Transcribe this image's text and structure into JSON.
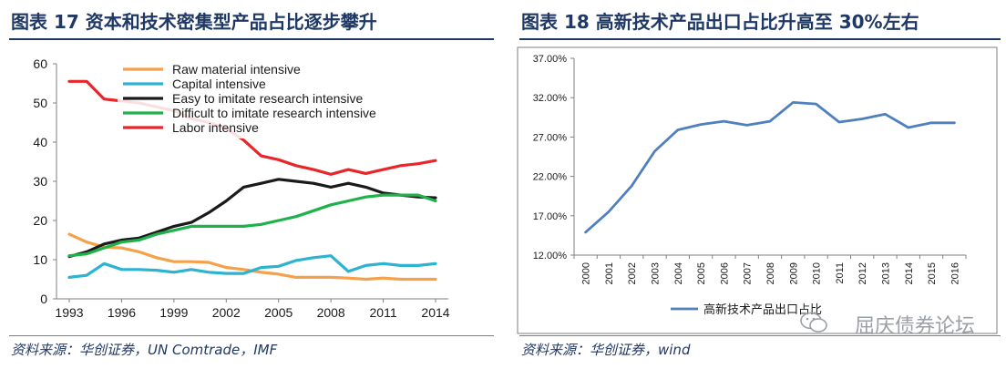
{
  "left": {
    "title": "图表 17  资本和技术密集型产品占比逐步攀升",
    "source": "资料来源：华创证券，UN Comtrade，IMF"
  },
  "right": {
    "title": "图表 18  高新技术产品出口占比升高至 30%左右",
    "source": "资料来源：华创证券，wind"
  },
  "watermark": "屈庆债券论坛",
  "watermark_icon": "wechat-icon",
  "colors": {
    "title": "#1f3864",
    "raw": "#f5a04a",
    "capital": "#2bb3d0",
    "easy": "#1a1a1a",
    "difficult": "#1fb24a",
    "labor": "#e8262a",
    "hightech": "#4f7fbf"
  },
  "chart_data": [
    {
      "type": "line",
      "x": [
        1993,
        1994,
        1995,
        1996,
        1997,
        1998,
        1999,
        2000,
        2001,
        2002,
        2003,
        2004,
        2005,
        2006,
        2007,
        2008,
        2009,
        2010,
        2011,
        2012,
        2013,
        2014
      ],
      "xticks": [
        "1993",
        "1996",
        "1999",
        "2002",
        "2005",
        "2008",
        "2011",
        "2014"
      ],
      "yticks": [
        "0",
        "10",
        "20",
        "30",
        "40",
        "50",
        "60"
      ],
      "ylim": [
        0,
        60
      ],
      "legend_position": "top",
      "series": [
        {
          "name": "Raw material intensive",
          "color": "#f5a04a",
          "values": [
            16.5,
            14.5,
            13.2,
            13.0,
            12.0,
            10.5,
            9.5,
            9.5,
            9.3,
            8.0,
            7.5,
            6.8,
            6.3,
            5.5,
            5.5,
            5.5,
            5.3,
            5.0,
            5.3,
            5.0,
            5.0,
            5.0
          ]
        },
        {
          "name": "Capital intensive",
          "color": "#2bb3d0",
          "values": [
            5.5,
            6.0,
            9.0,
            7.5,
            7.5,
            7.3,
            6.8,
            7.5,
            6.8,
            6.5,
            6.5,
            8.0,
            8.3,
            9.8,
            10.5,
            11.0,
            7.0,
            8.5,
            9.0,
            8.5,
            8.5,
            9.0
          ]
        },
        {
          "name": "Easy to imitate research intensive",
          "color": "#1a1a1a",
          "values": [
            10.8,
            12.0,
            14.0,
            15.0,
            15.5,
            17.0,
            18.5,
            19.5,
            22.0,
            25.0,
            28.5,
            29.5,
            30.5,
            30.0,
            29.5,
            28.5,
            29.5,
            28.5,
            27.0,
            26.5,
            26.0,
            25.8
          ]
        },
        {
          "name": "Difficult to imitate research intensive",
          "color": "#1fb24a",
          "values": [
            11.0,
            11.5,
            13.0,
            14.5,
            15.0,
            16.5,
            17.5,
            18.5,
            18.5,
            18.5,
            18.5,
            19.0,
            20.0,
            21.0,
            22.5,
            24.0,
            25.0,
            26.0,
            26.5,
            26.5,
            26.5,
            25.0
          ]
        },
        {
          "name": "Labor intensive",
          "color": "#e8262a",
          "values": [
            55.5,
            55.5,
            51.0,
            50.5,
            50.0,
            49.0,
            48.0,
            46.0,
            45.0,
            43.5,
            40.5,
            36.5,
            35.5,
            34.0,
            33.0,
            31.8,
            33.0,
            32.0,
            33.0,
            34.0,
            34.5,
            35.3
          ]
        }
      ]
    },
    {
      "type": "line",
      "x": [
        "2000",
        "2001",
        "2002",
        "2003",
        "2004",
        "2005",
        "2006",
        "2007",
        "2008",
        "2009",
        "2010",
        "2011",
        "2012",
        "2013",
        "2014",
        "2015",
        "2016"
      ],
      "yticks": [
        "12.00%",
        "17.00%",
        "22.00%",
        "27.00%",
        "32.00%",
        "37.00%"
      ],
      "ylim": [
        12,
        37
      ],
      "legend_position": "bottom",
      "series": [
        {
          "name": "高新技术产品出口占比",
          "color": "#4f7fbf",
          "values": [
            14.9,
            17.5,
            20.8,
            25.2,
            27.9,
            28.6,
            29.0,
            28.5,
            29.0,
            31.4,
            31.2,
            28.9,
            29.3,
            29.9,
            28.2,
            28.8,
            28.8
          ]
        }
      ]
    }
  ]
}
